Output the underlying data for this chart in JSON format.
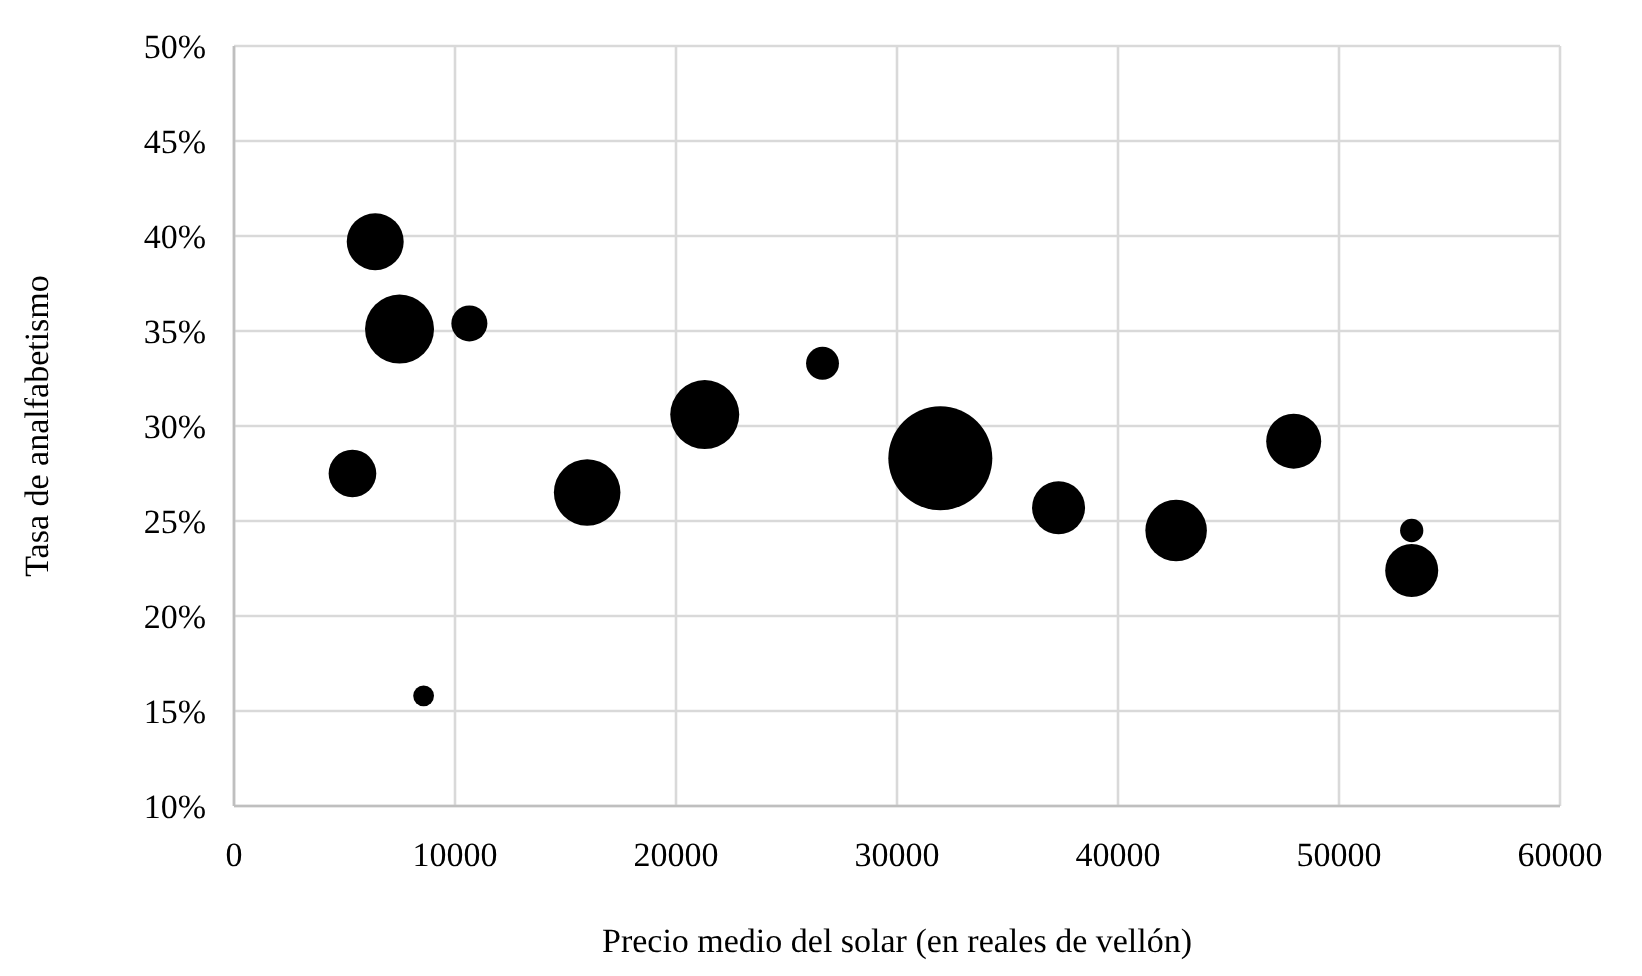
{
  "chart_data": {
    "type": "bubble",
    "xlabel": "Precio medio del solar (en reales de vellón)",
    "ylabel": "Tasa de analfabetismo",
    "x": [
      6390,
      7490,
      10650,
      5360,
      8580,
      15980,
      21300,
      26630,
      31960,
      37310,
      42630,
      47950,
      53290,
      53290
    ],
    "values": [
      39.7,
      35.1,
      35.4,
      27.5,
      15.8,
      26.5,
      30.6,
      33.3,
      28.3,
      25.7,
      24.5,
      29.2,
      24.5,
      22.4
    ],
    "sizes": [
      0.3,
      0.44,
      0.12,
      0.21,
      0.04,
      0.41,
      0.44,
      0.1,
      1,
      0.26,
      0.35,
      0.28,
      0.05,
      0.26
    ],
    "color": "#000000",
    "xlim": [
      0,
      60000
    ],
    "xticks": [
      0,
      10000,
      20000,
      30000,
      40000,
      50000,
      60000
    ],
    "ylim": [
      10,
      50
    ],
    "yticks": [
      {
        "value": 10,
        "label": "10%"
      },
      {
        "value": 15,
        "label": "15%"
      },
      {
        "value": 20,
        "label": "20%"
      },
      {
        "value": 25,
        "label": "25%"
      },
      {
        "value": 30,
        "label": "30%"
      },
      {
        "value": 35,
        "label": "35%"
      },
      {
        "value": 40,
        "label": "40%"
      },
      {
        "value": 45,
        "label": "45%"
      },
      {
        "value": 50,
        "label": "50%"
      }
    ],
    "grid": true
  }
}
